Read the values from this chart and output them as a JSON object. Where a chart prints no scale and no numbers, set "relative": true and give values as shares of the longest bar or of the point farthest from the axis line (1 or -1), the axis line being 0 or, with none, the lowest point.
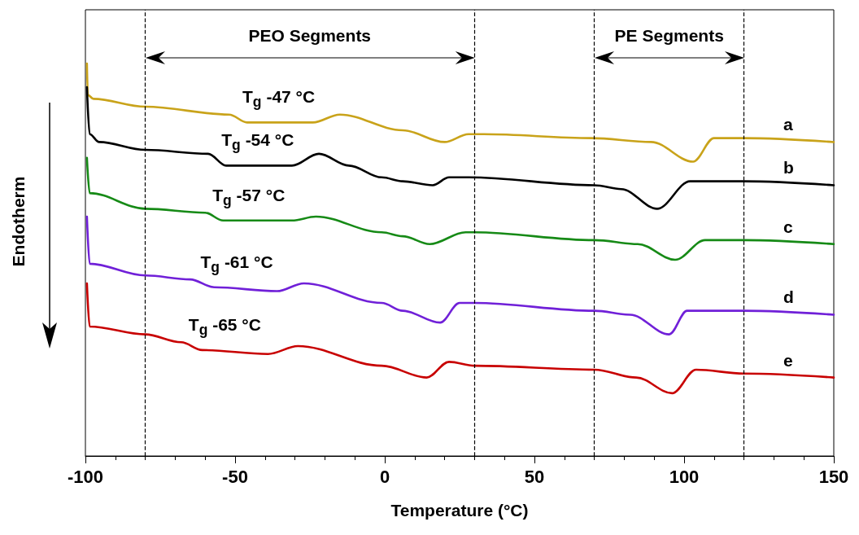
{
  "chart_data": {
    "type": "line",
    "relative": true,
    "xlabel": "Temperature (°C)",
    "ylabel": "Endotherm",
    "xlim": [
      -100,
      150
    ],
    "xticks": [
      -100,
      -50,
      0,
      50,
      100,
      150
    ],
    "tick_labels": "x",
    "marker": "none",
    "line_style": "solid",
    "series": [
      {
        "name": "a",
        "color": "#c9a31a",
        "x": [
          -99.5,
          -99.2,
          -97.3,
          -80,
          -52,
          -46,
          -24,
          -15,
          6,
          20,
          28,
          33,
          69,
          89,
          103,
          110,
          120,
          150
        ],
        "values": [
          1.0,
          0.92,
          0.91,
          0.89,
          0.87,
          0.85,
          0.85,
          0.87,
          0.83,
          0.8,
          0.82,
          0.82,
          0.81,
          0.8,
          0.75,
          0.81,
          0.81,
          0.8
        ]
      },
      {
        "name": "b",
        "color": "#000000",
        "x": [
          -99.5,
          -98.6,
          -95.4,
          -80,
          -59,
          -53,
          -31,
          -22,
          -12,
          -1,
          6,
          16,
          21.5,
          28,
          70,
          79,
          91,
          102,
          120,
          150
        ],
        "values": [
          0.94,
          0.82,
          0.8,
          0.78,
          0.77,
          0.74,
          0.74,
          0.77,
          0.74,
          0.71,
          0.7,
          0.69,
          0.71,
          0.71,
          0.69,
          0.68,
          0.63,
          0.7,
          0.7,
          0.69
        ]
      },
      {
        "name": "c",
        "color": "#168a16",
        "x": [
          -99.5,
          -98.6,
          -80,
          -60,
          -54,
          -31,
          -23,
          -1,
          6,
          15,
          27,
          30,
          70,
          84.5,
          97,
          107,
          120,
          150
        ],
        "values": [
          0.76,
          0.67,
          0.63,
          0.62,
          0.6,
          0.6,
          0.61,
          0.57,
          0.56,
          0.54,
          0.57,
          0.57,
          0.55,
          0.54,
          0.5,
          0.55,
          0.55,
          0.54
        ]
      },
      {
        "name": "d",
        "color": "#7020d8",
        "x": [
          -99.5,
          -98.6,
          -80,
          -65,
          -57,
          -36,
          -27,
          -1,
          6,
          18.5,
          25,
          30,
          70,
          82,
          95,
          101,
          120,
          150
        ],
        "values": [
          0.61,
          0.49,
          0.46,
          0.45,
          0.43,
          0.42,
          0.44,
          0.39,
          0.37,
          0.34,
          0.39,
          0.39,
          0.37,
          0.36,
          0.31,
          0.37,
          0.37,
          0.36
        ]
      },
      {
        "name": "e",
        "color": "#c80000",
        "x": [
          -99.5,
          -98.6,
          -80,
          -68,
          -61,
          -39,
          -29,
          -1,
          14,
          21.5,
          30,
          70,
          84,
          96,
          104,
          120,
          150
        ],
        "values": [
          0.44,
          0.33,
          0.31,
          0.29,
          0.27,
          0.26,
          0.28,
          0.23,
          0.2,
          0.24,
          0.23,
          0.22,
          0.2,
          0.16,
          0.22,
          0.21,
          0.2
        ]
      }
    ],
    "ref_lines": [
      {
        "axis": "x",
        "value": -80,
        "color": "#000000",
        "line_style": "dashed"
      },
      {
        "axis": "x",
        "value": 30,
        "color": "#000000",
        "line_style": "dashed"
      },
      {
        "axis": "x",
        "value": 70,
        "color": "#000000",
        "line_style": "dashed"
      },
      {
        "axis": "x",
        "value": 120,
        "color": "#000000",
        "line_style": "dashed"
      }
    ],
    "annotations": [
      "PEO Segments",
      "PE Segments",
      {
        "text": "T$_{g}$ -47 °C",
        "x": -47,
        "y": 0.85
      },
      {
        "text": "T$_{g}$ -54 °C",
        "x": -54,
        "y": 0.74
      },
      {
        "text": "T$_{g}$ -57 °C",
        "x": -57,
        "y": 0.6
      },
      {
        "text": "T$_{g}$ -61 °C",
        "x": -61,
        "y": 0.43
      },
      {
        "text": "T$_{g}$ -65 °C",
        "x": -65,
        "y": 0.27
      }
    ]
  }
}
